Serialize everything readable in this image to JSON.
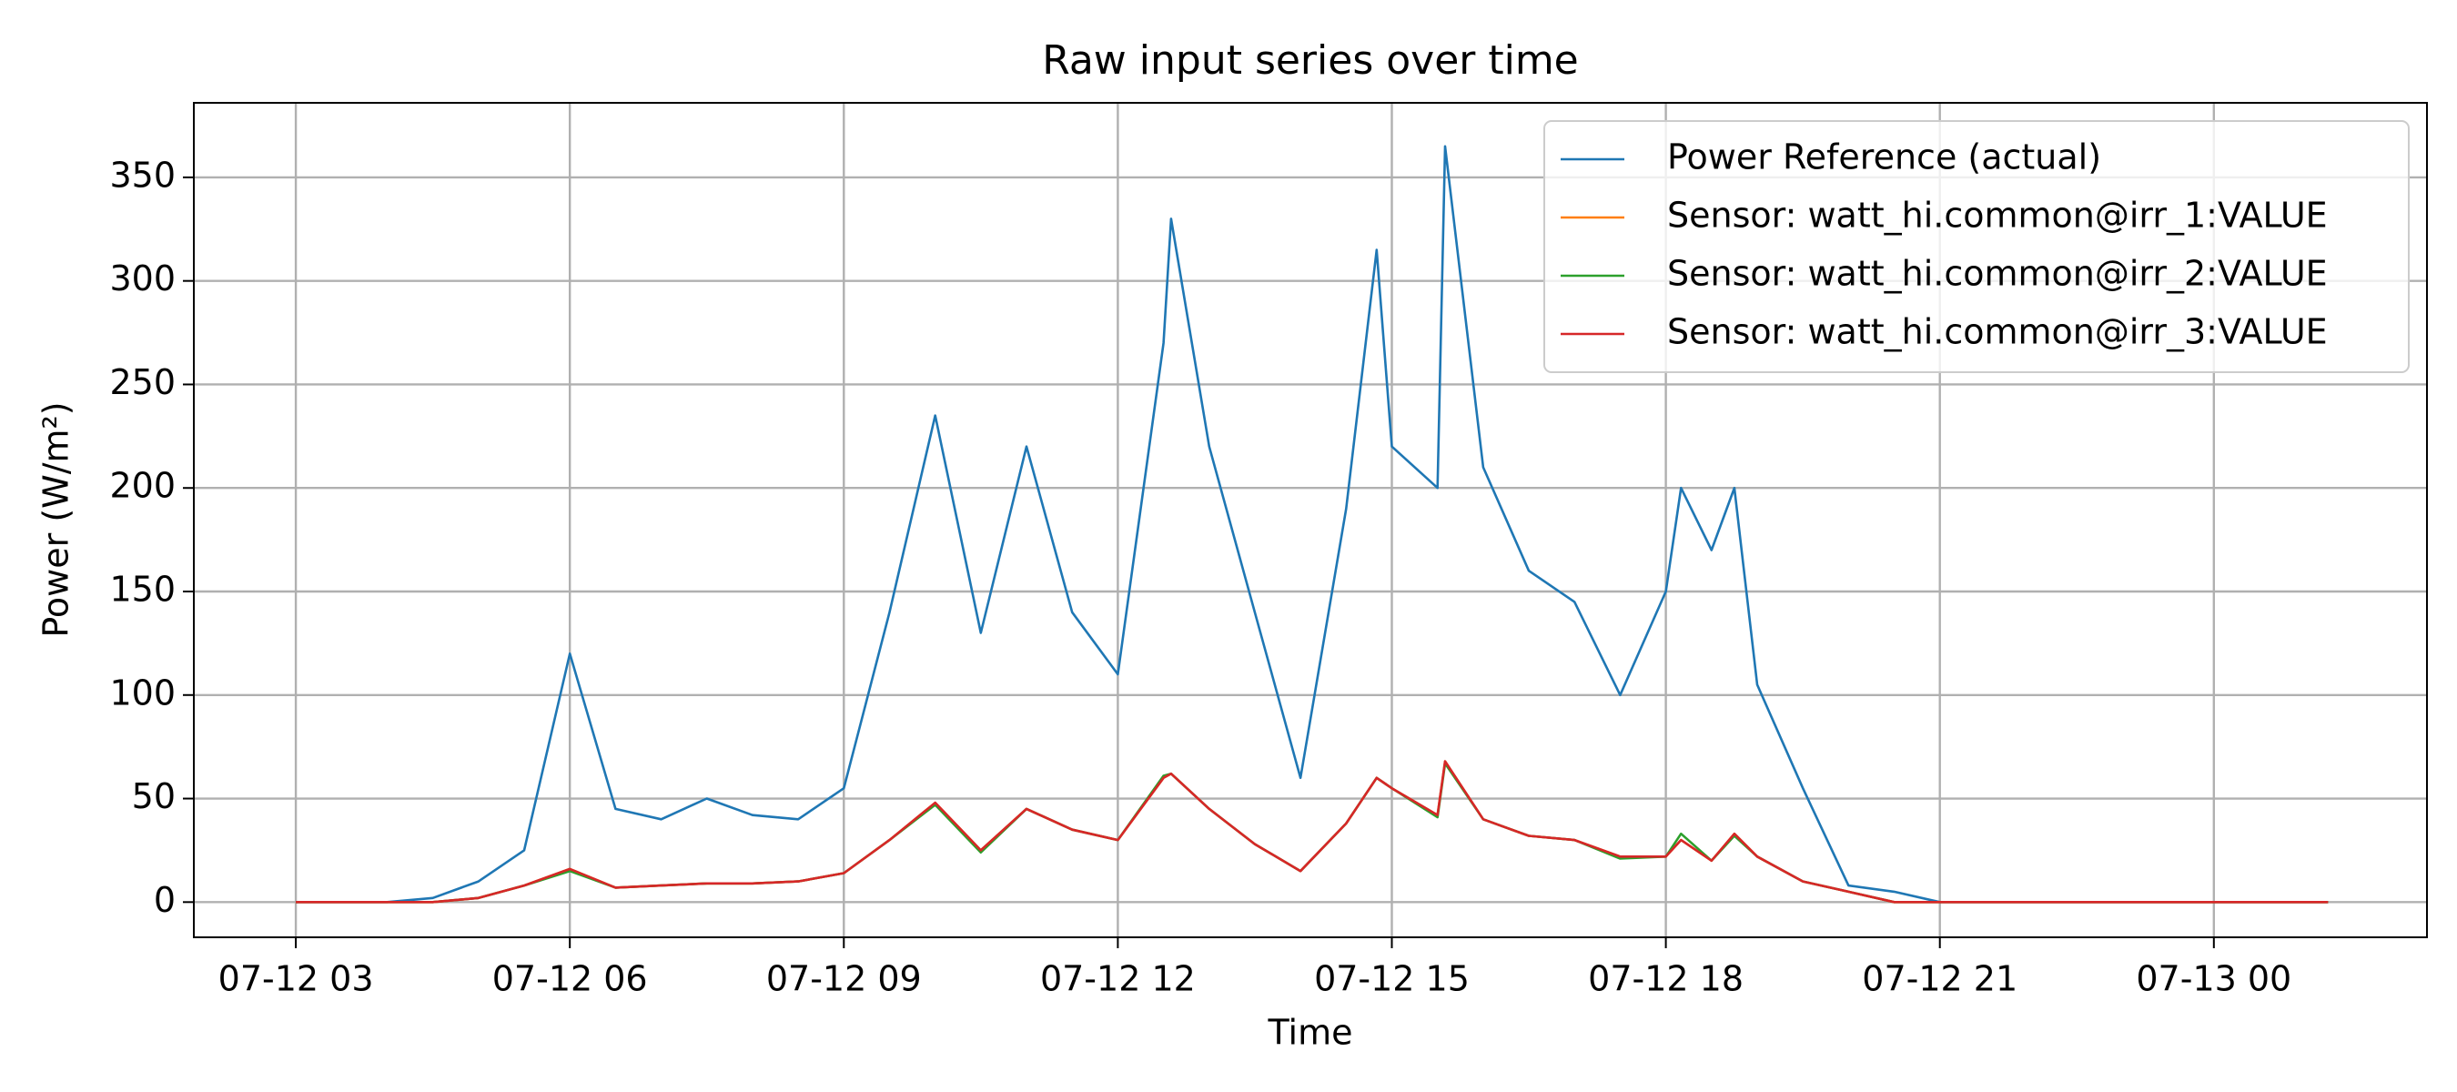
{
  "chart_data": {
    "type": "line",
    "title": "Raw input series over time",
    "xlabel": "Time",
    "ylabel": "Power (W/m²)",
    "x": [
      "07-12 03:00",
      "07-12 03:30",
      "07-12 04:00",
      "07-12 04:30",
      "07-12 05:00",
      "07-12 05:30",
      "07-12 06:00",
      "07-12 06:30",
      "07-12 07:00",
      "07-12 07:30",
      "07-12 08:00",
      "07-12 08:30",
      "07-12 09:00",
      "07-12 09:30",
      "07-12 10:00",
      "07-12 10:30",
      "07-12 11:00",
      "07-12 11:30",
      "07-12 12:00",
      "07-12 12:30",
      "07-12 12:35",
      "07-12 13:00",
      "07-12 13:30",
      "07-12 14:00",
      "07-12 14:30",
      "07-12 14:50",
      "07-12 15:00",
      "07-12 15:30",
      "07-12 15:35",
      "07-12 16:00",
      "07-12 16:30",
      "07-12 17:00",
      "07-12 17:30",
      "07-12 18:00",
      "07-12 18:10",
      "07-12 18:30",
      "07-12 18:45",
      "07-12 19:00",
      "07-12 19:30",
      "07-12 20:00",
      "07-12 20:30",
      "07-12 21:00",
      "07-12 21:30",
      "07-12 22:00",
      "07-12 23:00",
      "07-13 00:00",
      "07-13 01:00",
      "07-13 01:15"
    ],
    "series": [
      {
        "name": "Power Reference (actual)",
        "color": "#1f77b4",
        "values": [
          0,
          0,
          0,
          2,
          10,
          25,
          120,
          45,
          40,
          50,
          42,
          40,
          55,
          140,
          235,
          130,
          220,
          140,
          110,
          270,
          330,
          220,
          140,
          60,
          190,
          315,
          220,
          200,
          365,
          210,
          160,
          145,
          100,
          150,
          200,
          170,
          200,
          105,
          55,
          8,
          5,
          0,
          0,
          0,
          0,
          0,
          0,
          0
        ]
      },
      {
        "name": "Sensor: watt_hi.common@irr_1:VALUE",
        "color": "#ff7f0e",
        "values": [
          0,
          0,
          0,
          0,
          2,
          8,
          16,
          7,
          8,
          9,
          9,
          10,
          14,
          30,
          48,
          25,
          45,
          35,
          30,
          60,
          62,
          45,
          28,
          15,
          38,
          60,
          55,
          42,
          68,
          40,
          32,
          30,
          22,
          22,
          30,
          20,
          33,
          22,
          10,
          5,
          0,
          0,
          0,
          0,
          0,
          0,
          0,
          0
        ]
      },
      {
        "name": "Sensor: watt_hi.common@irr_2:VALUE",
        "color": "#2ca02c",
        "values": [
          0,
          0,
          0,
          0,
          2,
          8,
          15,
          7,
          8,
          9,
          9,
          10,
          14,
          30,
          47,
          24,
          45,
          35,
          30,
          61,
          62,
          45,
          28,
          15,
          38,
          60,
          55,
          41,
          67,
          40,
          32,
          30,
          21,
          22,
          33,
          20,
          32,
          22,
          10,
          5,
          0,
          0,
          0,
          0,
          0,
          0,
          0,
          0
        ]
      },
      {
        "name": "Sensor: watt_hi.common@irr_3:VALUE",
        "color": "#d62728",
        "values": [
          0,
          0,
          0,
          0,
          2,
          8,
          16,
          7,
          8,
          9,
          9,
          10,
          14,
          30,
          48,
          25,
          45,
          35,
          30,
          60,
          62,
          45,
          28,
          15,
          38,
          60,
          55,
          42,
          68,
          40,
          32,
          30,
          22,
          22,
          30,
          20,
          33,
          22,
          10,
          5,
          0,
          0,
          0,
          0,
          0,
          0,
          0,
          0
        ]
      }
    ],
    "xlim": [
      "07-12 01:53",
      "07-13 02:20"
    ],
    "xticks": [
      {
        "value": "07-12 03:00",
        "label": "07-12 03"
      },
      {
        "value": "07-12 06:00",
        "label": "07-12 06"
      },
      {
        "value": "07-12 09:00",
        "label": "07-12 09"
      },
      {
        "value": "07-12 12:00",
        "label": "07-12 12"
      },
      {
        "value": "07-12 15:00",
        "label": "07-12 15"
      },
      {
        "value": "07-12 18:00",
        "label": "07-12 18"
      },
      {
        "value": "07-12 21:00",
        "label": "07-12 21"
      },
      {
        "value": "07-13 00:00",
        "label": "07-13 00"
      }
    ],
    "ylim": [
      -17,
      386
    ],
    "yticks": [
      0,
      50,
      100,
      150,
      200,
      250,
      300,
      350
    ],
    "grid": true,
    "legend": "upper right"
  }
}
